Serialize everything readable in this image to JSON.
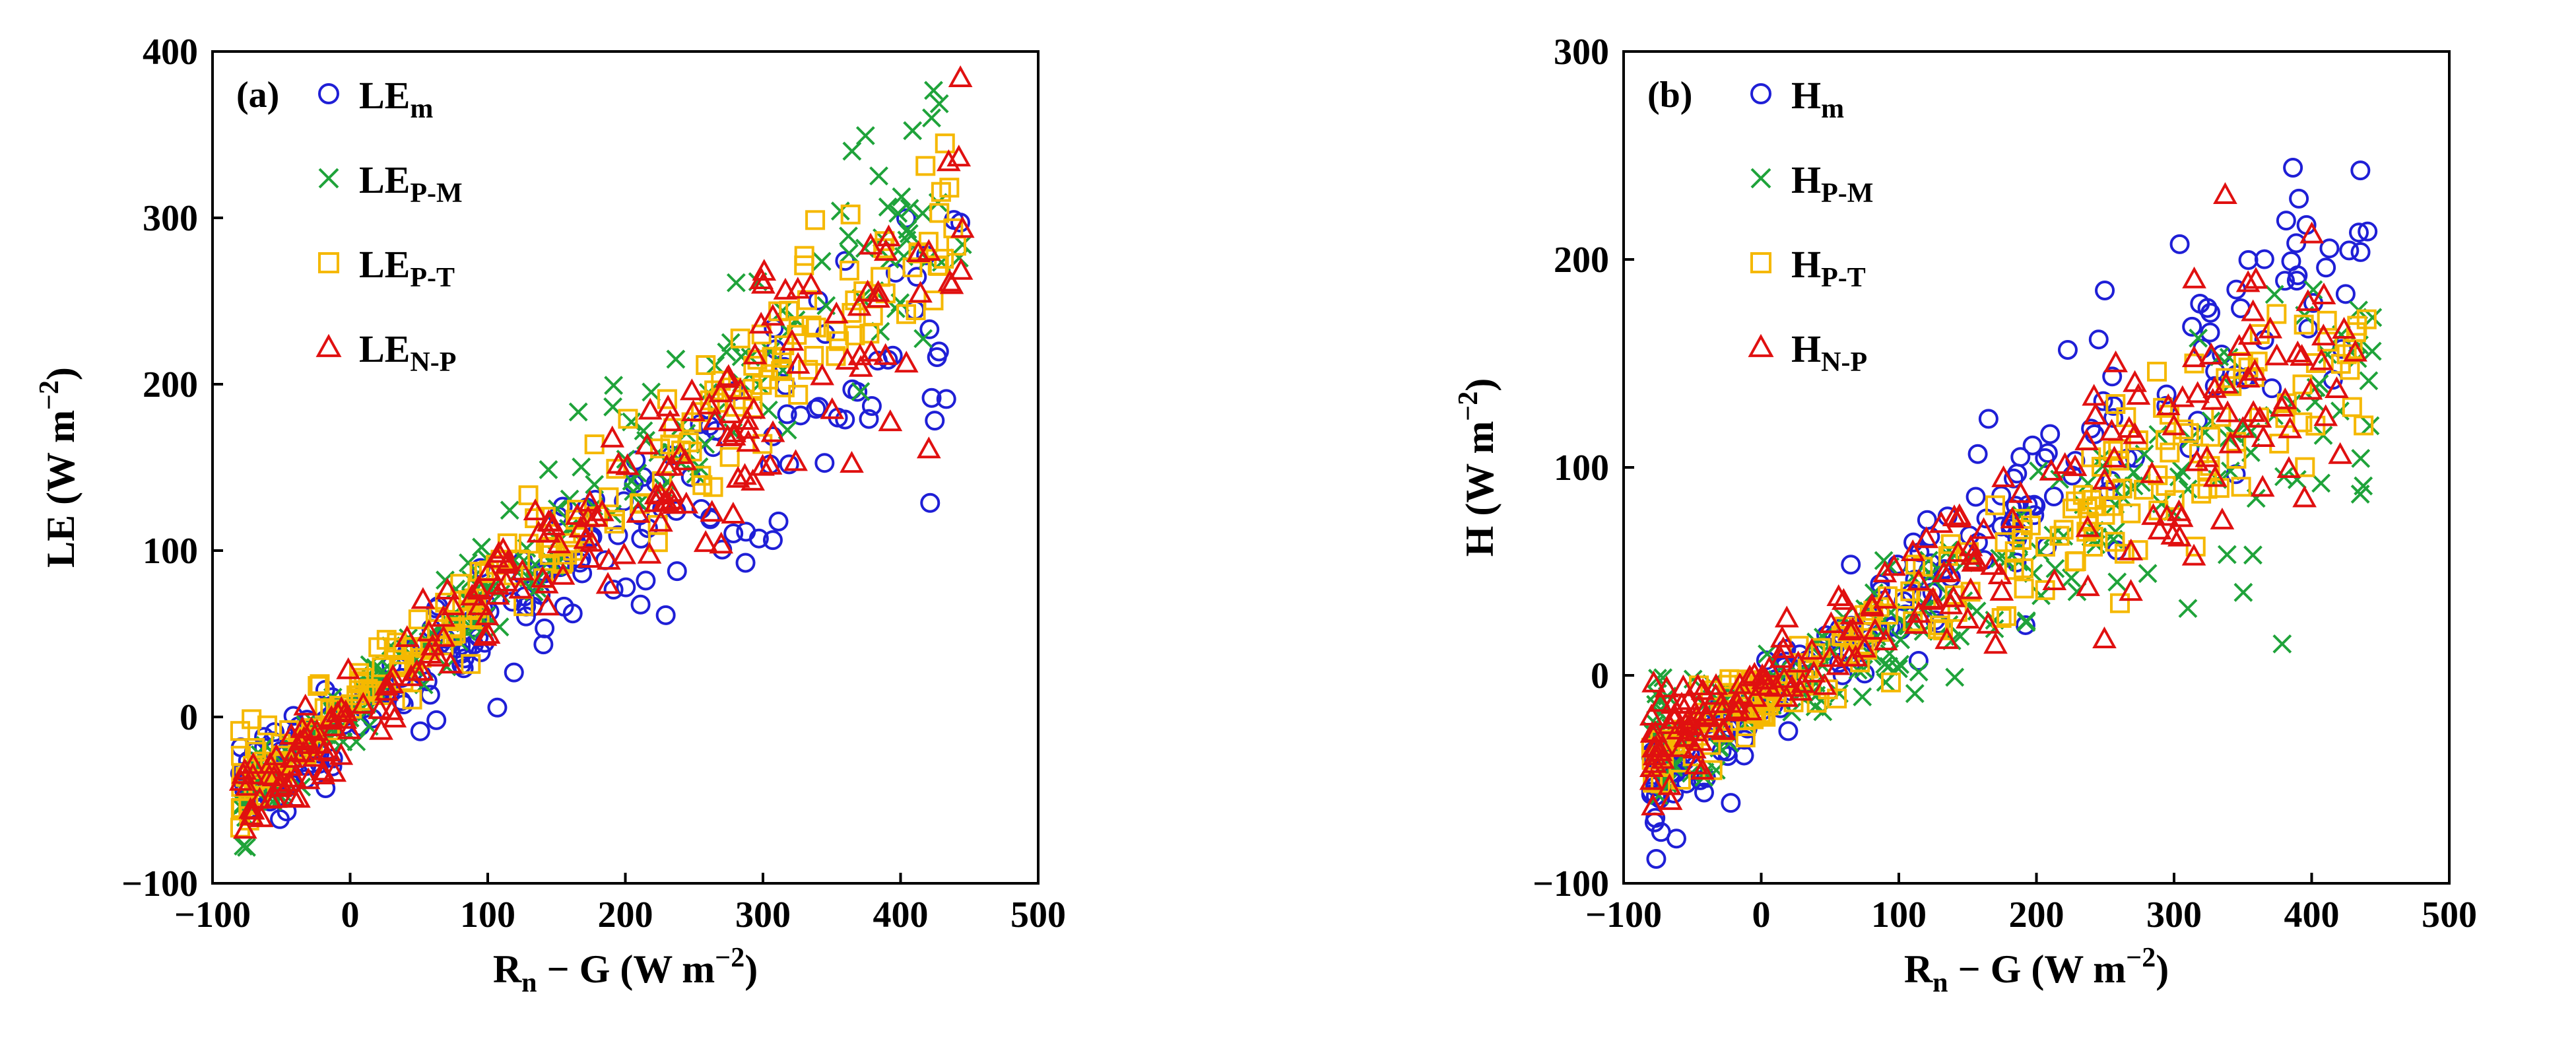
{
  "chart_data": [
    {
      "type": "scatter",
      "panel_label": "(a)",
      "xlabel": {
        "base": "R",
        "sub": "n",
        "rest": " − G (W m",
        "sup": "−2",
        "end": ")"
      },
      "ylabel": {
        "text": "LE (W m",
        "sup": "−2",
        "end": ")"
      },
      "xlim": [
        -100,
        500
      ],
      "ylim": [
        -100,
        400
      ],
      "xticks": [
        -100,
        0,
        100,
        200,
        300,
        400,
        500
      ],
      "yticks": [
        -100,
        0,
        100,
        200,
        300,
        400
      ],
      "legend_position": "top-left",
      "series": [
        {
          "key": "m",
          "base": "LE",
          "sub": "m",
          "marker": "circle",
          "color": "#1f1fd6",
          "slope": 0.56,
          "intercept": -2,
          "noise": 20
        },
        {
          "key": "pm",
          "base": "LE",
          "sub": "P-M",
          "marker": "cross",
          "color": "#1fa33a",
          "slope": 0.72,
          "intercept": 5,
          "noise": 16
        },
        {
          "key": "pt",
          "base": "LE",
          "sub": "P-T",
          "marker": "square",
          "color": "#f5b800",
          "slope": 0.66,
          "intercept": 10,
          "noise": 15
        },
        {
          "key": "np",
          "base": "LE",
          "sub": "N-P",
          "marker": "triangle",
          "color": "#e01010",
          "slope": 0.66,
          "intercept": 0,
          "noise": 18
        }
      ]
    },
    {
      "type": "scatter",
      "panel_label": "(b)",
      "xlabel": {
        "base": "R",
        "sub": "n",
        "rest": " − G (W m",
        "sup": "−2",
        "end": ")"
      },
      "ylabel": {
        "text": "H (W m",
        "sup": "−2",
        "end": ")"
      },
      "xlim": [
        -100,
        500
      ],
      "ylim": [
        -100,
        300
      ],
      "xticks": [
        -100,
        0,
        100,
        200,
        300,
        400,
        500
      ],
      "yticks": [
        -100,
        0,
        100,
        200,
        300
      ],
      "legend_position": "top-left",
      "series": [
        {
          "key": "m",
          "base": "H",
          "sub": "m",
          "marker": "circle",
          "color": "#1f1fd6",
          "slope": 0.52,
          "intercept": -12,
          "noise": 18
        },
        {
          "key": "pm",
          "base": "H",
          "sub": "P-M",
          "marker": "cross",
          "color": "#1fa33a",
          "slope": 0.33,
          "intercept": -10,
          "noise": 16
        },
        {
          "key": "pt",
          "base": "H",
          "sub": "P-T",
          "marker": "square",
          "color": "#f5b800",
          "slope": 0.38,
          "intercept": -8,
          "noise": 14
        },
        {
          "key": "np",
          "base": "H",
          "sub": "N-P",
          "marker": "triangle",
          "color": "#e01010",
          "slope": 0.4,
          "intercept": -5,
          "noise": 18
        }
      ]
    }
  ]
}
